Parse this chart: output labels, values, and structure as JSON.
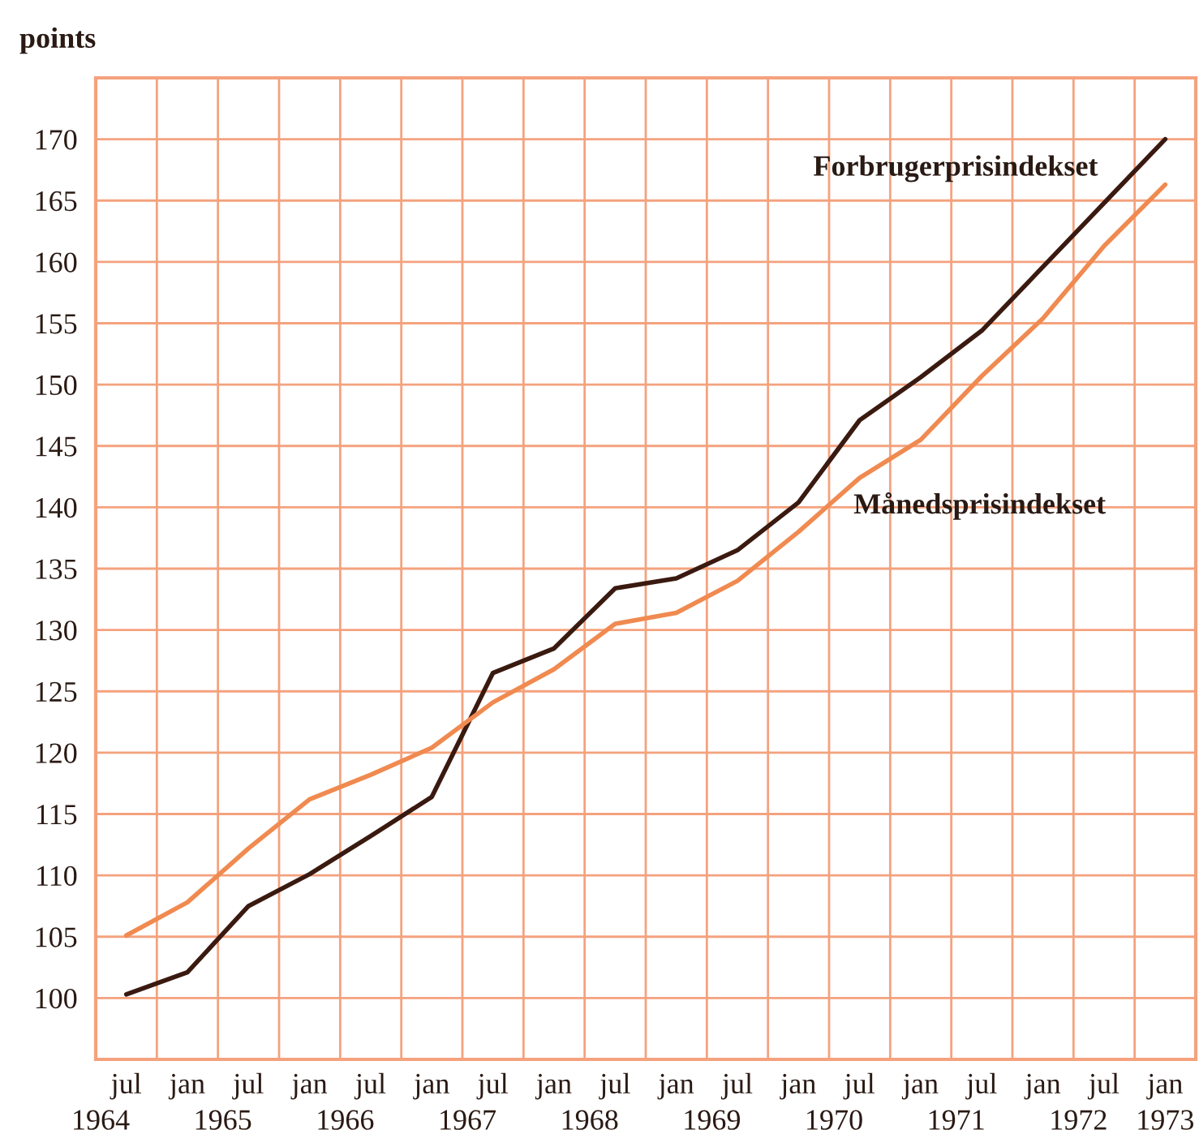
{
  "chart_data": {
    "type": "line",
    "ylabel": "points",
    "categories": [
      "jul",
      "jan",
      "jul",
      "jan",
      "jul",
      "jan",
      "jul",
      "jan",
      "jul",
      "jan",
      "jul",
      "jan",
      "jul",
      "jan",
      "jul",
      "jan",
      "jul",
      "jan"
    ],
    "series": [
      {
        "name": "Forbrugerprisindekset",
        "color": "#3a1a10",
        "values": [
          100.3,
          102.1,
          107.5,
          110.1,
          113.2,
          116.4,
          126.5,
          128.5,
          133.4,
          134.2,
          136.5,
          140.4,
          147.1,
          150.6,
          154.4,
          159.6,
          164.8,
          170.0
        ]
      },
      {
        "name": "Månedsprisindekset",
        "color": "#f08a50",
        "values": [
          105.1,
          107.8,
          112.2,
          116.2,
          118.2,
          120.4,
          124.1,
          126.8,
          130.5,
          131.4,
          134.0,
          138.0,
          142.4,
          145.5,
          150.7,
          155.4,
          161.3,
          166.3
        ]
      }
    ],
    "ylim": [
      95,
      175
    ],
    "yticks": [
      100,
      105,
      110,
      115,
      120,
      125,
      130,
      135,
      140,
      145,
      150,
      155,
      160,
      165,
      170
    ],
    "annotations": [
      "1964",
      "1965",
      "1966",
      "1967",
      "1968",
      "1969",
      "1970",
      "1971",
      "1972",
      "1973"
    ],
    "grid": true,
    "legend": false,
    "marker": "none",
    "line_style": "solid"
  }
}
